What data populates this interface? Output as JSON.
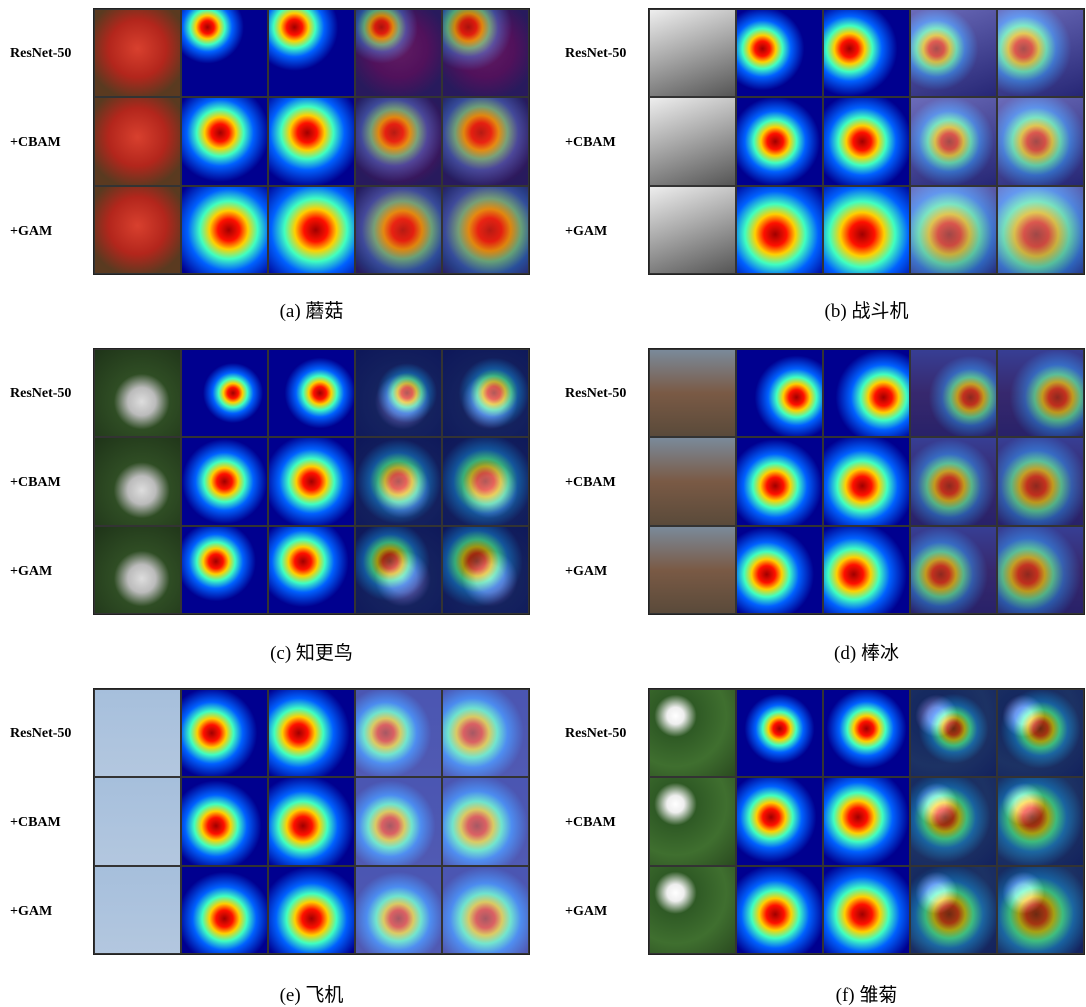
{
  "panels": [
    {
      "caption": "(a) 蘑菇",
      "rows": [
        "ResNet-50",
        "+CBAM",
        "+GAM"
      ]
    },
    {
      "caption": "(b) 战斗机",
      "rows": [
        "ResNet-50",
        "+CBAM",
        "+GAM"
      ]
    },
    {
      "caption": "(c) 知更鸟",
      "rows": [
        "ResNet-50",
        "+CBAM",
        "+GAM"
      ]
    },
    {
      "caption": "(d) 棒冰",
      "rows": [
        "ResNet-50",
        "+CBAM",
        "+GAM"
      ]
    },
    {
      "caption": "(e) 飞机",
      "rows": [
        "ResNet-50",
        "+CBAM",
        "+GAM"
      ]
    },
    {
      "caption": "(f) 雏菊",
      "rows": [
        "ResNet-50",
        "+CBAM",
        "+GAM"
      ]
    }
  ]
}
